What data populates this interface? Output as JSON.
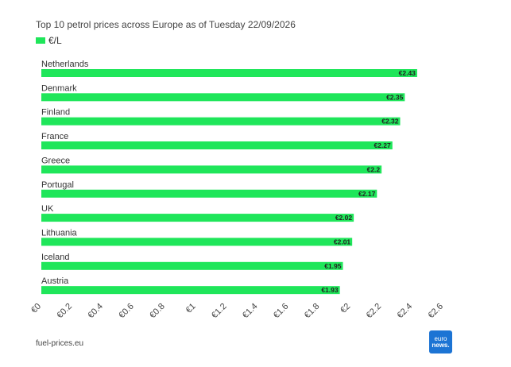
{
  "colors": {
    "bar": "#1fe65a",
    "logo_bg": "#1c74d4"
  },
  "source": "fuel-prices.eu",
  "logo": {
    "line1": "euro",
    "line2": "news."
  },
  "chart_data": {
    "type": "bar",
    "orientation": "horizontal",
    "title": "Top 10 petrol prices across Europe as of Tuesday 22/09/2026",
    "legend": {
      "position": "top-left",
      "entries": [
        "€/L"
      ]
    },
    "categories": [
      "Netherlands",
      "Denmark",
      "Finland",
      "France",
      "Greece",
      "Portugal",
      "UK",
      "Lithuania",
      "Iceland",
      "Austria"
    ],
    "series": [
      {
        "name": "€/L",
        "values": [
          2.43,
          2.35,
          2.32,
          2.27,
          2.2,
          2.17,
          2.02,
          2.01,
          1.95,
          1.93
        ]
      }
    ],
    "data_labels": [
      "€2.43",
      "€2.35",
      "€2.32",
      "€2.27",
      "€2.2",
      "€2.17",
      "€2.02",
      "€2.01",
      "€1.95",
      "€1.93"
    ],
    "xlim": [
      0,
      2.6
    ],
    "x_ticks": [
      0,
      0.2,
      0.4,
      0.6,
      0.8,
      1,
      1.2,
      1.4,
      1.6,
      1.8,
      2,
      2.2,
      2.4,
      2.6
    ],
    "x_tick_labels": [
      "€0",
      "€0.2",
      "€0.4",
      "€0.6",
      "€0.8",
      "€1",
      "€1.2",
      "€1.4",
      "€1.6",
      "€1.8",
      "€2",
      "€2.2",
      "€2.4",
      "€2.6"
    ],
    "grid": false
  }
}
